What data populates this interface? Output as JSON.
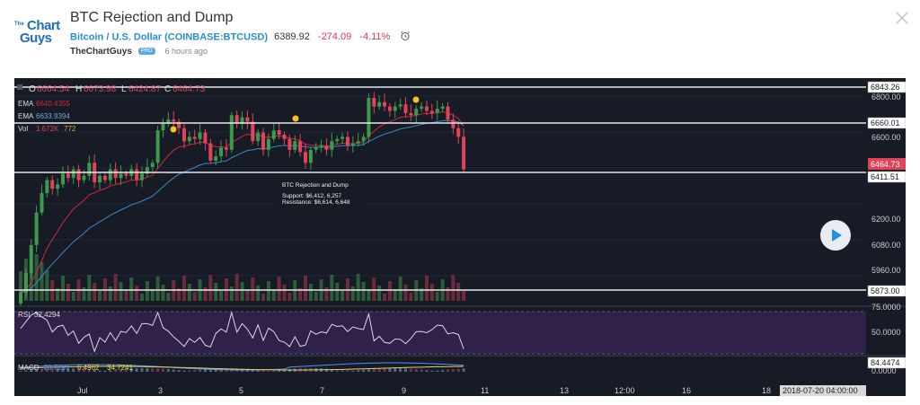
{
  "header": {
    "title": "BTC Rejection and Dump",
    "logo_the": "The",
    "logo_chart": "Chart",
    "logo_guys": "Guys",
    "symbol_label": "Bitcoin / U.S. Dollar (COINBASE:BTCUSD)",
    "price": "6389.92",
    "change": "-274.09",
    "change_pct": "-4.11%",
    "author": "TheChartGuys",
    "pro_badge": "PRO",
    "time_ago": "6 hours ago",
    "icons": [
      "alarm-clock-icon",
      "close-icon"
    ]
  },
  "legend": {
    "ohlc": {
      "O": "6664.54",
      "H": "6673.98",
      "L": "6424.87",
      "C": "6464.73"
    },
    "ema1_label": "EMA",
    "ema1_value": "6640.4355",
    "ema2_label": "EMA",
    "ema2_value": "6633.9394",
    "vol_label": "Vol",
    "vol_value1": "1.672K",
    "vol_value2": "772",
    "rsi_label": "RSI",
    "rsi_value": "32.4294",
    "macd_label": "MACD",
    "macd_v1": "-28.7291",
    "macd_v2": "6.4962",
    "macd_v3": "34.7241"
  },
  "annotation": {
    "title": "BTC Rejection and Dump",
    "support": "Support: $6,412, 6,257",
    "resistance": "Resistance: $6,614, 6,648"
  },
  "price_axis": {
    "ticks": [
      "6800.00",
      "6600.00",
      "6200.00",
      "6080.00",
      "5960.00"
    ],
    "line_labels": [
      "6843.26",
      "6660.01",
      "6411.51",
      "5873.00"
    ],
    "current_label": "6464.73"
  },
  "rsi_axis": {
    "ticks": [
      "75.0000",
      "50.0000"
    ]
  },
  "macd_axis": {
    "labels": [
      "84.4474",
      "0.0000"
    ]
  },
  "time_axis": {
    "ticks": [
      "Jul",
      "3",
      "5",
      "7",
      "9",
      "11",
      "13",
      "12:00",
      "16",
      "18"
    ],
    "cursor_label": "2018-07-20 04:00:00"
  },
  "colors": {
    "up": "#3e9a4a",
    "down": "#e2435a",
    "ema_fast": "#d0283c",
    "ema_slow": "#3d87c4",
    "background": "#161b26",
    "marker": "#f5c518",
    "rsi_band": "#3a2454",
    "accent": "#2a8ed6"
  },
  "chart_data": {
    "type": "candlestick",
    "title": "BTC Rejection and Dump",
    "symbol": "COINBASE:BTCUSD",
    "ylim": [
      5840,
      6860
    ],
    "horizontal_levels": [
      6843.26,
      6660.01,
      6411.51,
      5873.0
    ],
    "series": [
      {
        "name": "OHLC",
        "last": {
          "open": 6664.54,
          "high": 6673.98,
          "low": 6424.87,
          "close": 6464.73
        }
      },
      {
        "name": "EMA",
        "last": 6640.4355
      },
      {
        "name": "EMA",
        "last": 6633.9394
      },
      {
        "name": "Vol",
        "last": [
          1672,
          772
        ]
      },
      {
        "name": "RSI",
        "last": 32.4294
      },
      {
        "name": "MACD",
        "last": [
          -28.7291,
          6.4962,
          34.7241
        ]
      }
    ]
  }
}
